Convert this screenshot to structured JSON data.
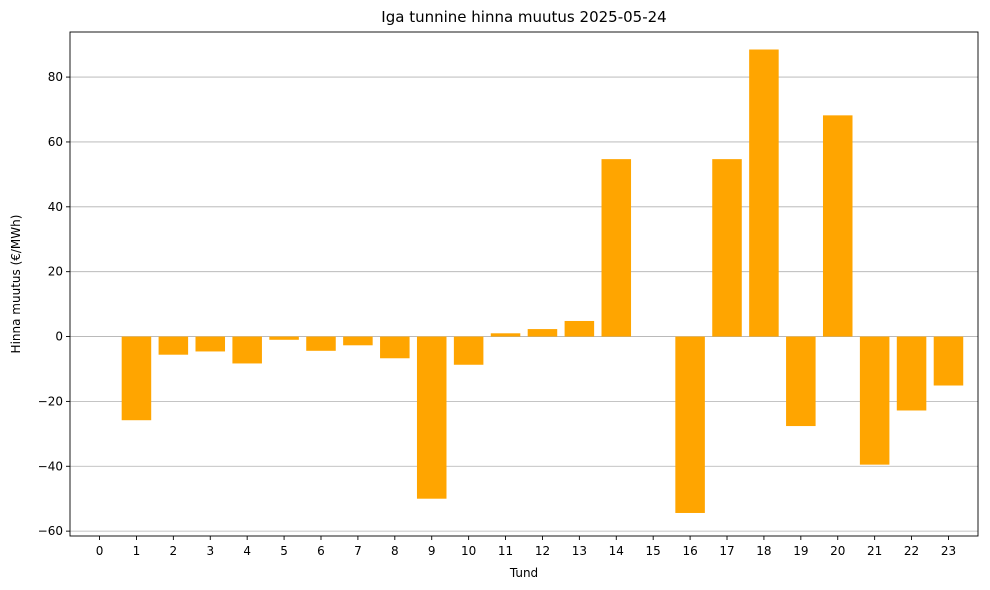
{
  "chart_data": {
    "type": "bar",
    "title": "Iga tunnine hinna muutus 2025-05-24",
    "xlabel": "Tund",
    "ylabel": "Hinna muutus (€/MWh)",
    "categories": [
      "0",
      "1",
      "2",
      "3",
      "4",
      "5",
      "6",
      "7",
      "8",
      "9",
      "10",
      "11",
      "12",
      "13",
      "14",
      "15",
      "16",
      "17",
      "18",
      "19",
      "20",
      "21",
      "22",
      "23"
    ],
    "values": [
      0,
      -25.8,
      -5.6,
      -4.6,
      -8.3,
      -1.0,
      -4.4,
      -2.7,
      -6.7,
      -50.0,
      -8.7,
      1.0,
      2.3,
      4.8,
      54.7,
      0,
      -54.4,
      54.7,
      88.5,
      -27.6,
      68.2,
      -39.5,
      -22.8,
      -15.1
    ],
    "ylim": [
      -61.5,
      93.9
    ],
    "yticks": [
      -60,
      -40,
      -20,
      0,
      20,
      40,
      60,
      80
    ],
    "ytick_labels": [
      "−60",
      "−40",
      "−20",
      "0",
      "20",
      "40",
      "60",
      "80"
    ],
    "bar_color": "#FFA500",
    "grid": "y-axis",
    "legend": "none"
  }
}
